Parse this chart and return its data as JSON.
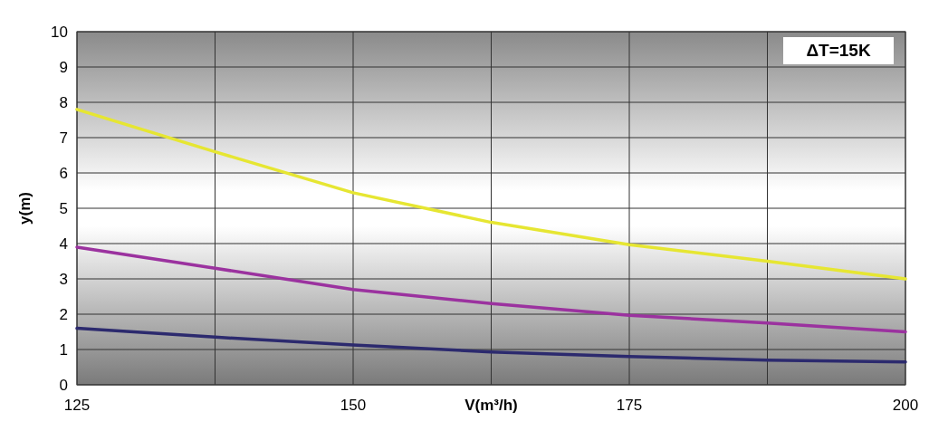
{
  "chart_data": {
    "type": "line",
    "xlabel": "V(m³/h)",
    "ylabel": "y(m)",
    "annotations": [
      "ΔT=15K"
    ],
    "x": [
      125,
      137.5,
      150,
      162.5,
      175,
      187.5,
      200
    ],
    "series": [
      {
        "color": "#e6e632",
        "values": [
          7.8,
          6.6,
          5.44,
          4.6,
          3.97,
          3.5,
          3.0
        ]
      },
      {
        "color": "#9b329f",
        "values": [
          3.9,
          3.3,
          2.7,
          2.3,
          1.97,
          1.75,
          1.5
        ]
      },
      {
        "color": "#2c2a6e",
        "values": [
          1.6,
          1.35,
          1.13,
          0.93,
          0.8,
          0.7,
          0.65
        ]
      }
    ],
    "xlim": [
      125,
      200
    ],
    "xticks": [
      125,
      {
        "value": 137.5,
        "label": null
      },
      150,
      {
        "value": 162.5,
        "label": null
      },
      175,
      {
        "value": 187.5,
        "label": null
      },
      200
    ],
    "ylim": [
      0,
      10
    ],
    "yticks": [
      0,
      1,
      2,
      3,
      4,
      5,
      6,
      7,
      8,
      9,
      10
    ],
    "grid": true,
    "marker": "none",
    "line_style": "solid"
  }
}
